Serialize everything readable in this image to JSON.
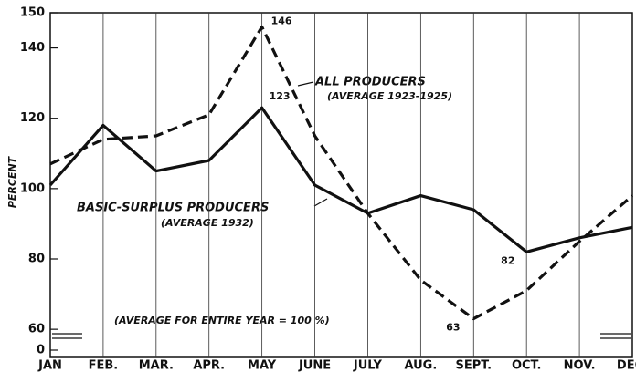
{
  "chart_data": {
    "type": "line",
    "y_label": "PERCENT",
    "categories": [
      "JAN",
      "FEB.",
      "MAR.",
      "APR.",
      "MAY",
      "JUNE",
      "JULY",
      "AUG.",
      "SEPT.",
      "OCT.",
      "NOV.",
      "DEC."
    ],
    "series": [
      {
        "name": "ALL PRODUCERS",
        "color": "#111111",
        "dash": true,
        "values": [
          107,
          114,
          115,
          121,
          146,
          115,
          93,
          74,
          63,
          71,
          85,
          98
        ]
      },
      {
        "name": "BASIC-SURPLUS PRODUCERS",
        "color": "#111111",
        "dash": false,
        "values": [
          101,
          118,
          105,
          108,
          123,
          101,
          93,
          98,
          94,
          82,
          86,
          89
        ]
      }
    ],
    "annotations": [
      "(AVERAGE 1923-1925)",
      "(AVERAGE 1932)",
      "(AVERAGE FOR ENTIRE YEAR = 100 %)"
    ],
    "ylim": [
      52,
      150
    ],
    "yticks": [
      0,
      60,
      80,
      100,
      120,
      140,
      150
    ],
    "axis_break": true,
    "grid": true
  }
}
